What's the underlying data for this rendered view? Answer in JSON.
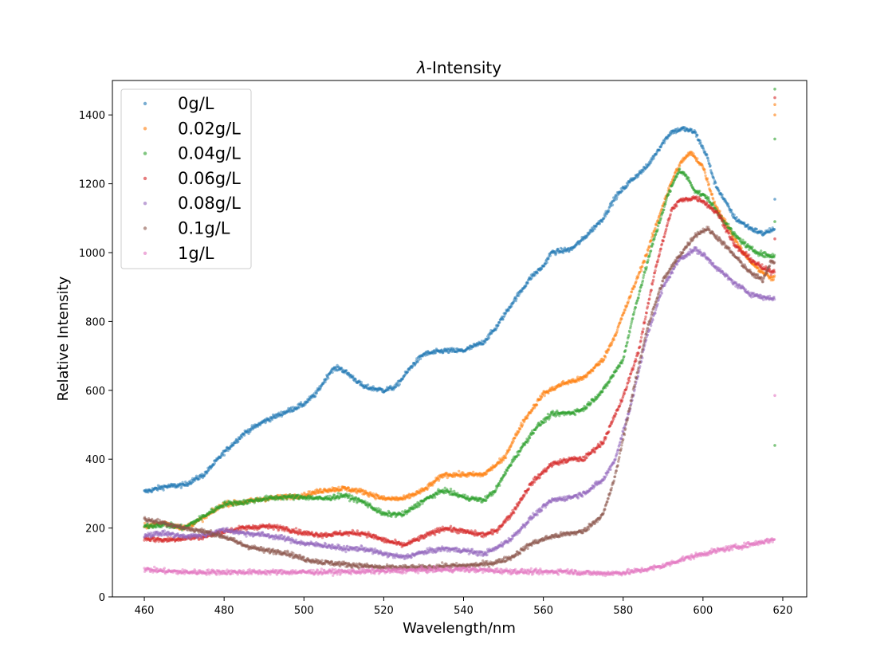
{
  "chart_data": {
    "type": "scatter",
    "title_prefix": "λ",
    "title_suffix": "-Intensity",
    "xlabel": "Wavelength/nm",
    "ylabel": "Relative Intensity",
    "xlim": [
      452,
      626
    ],
    "ylim": [
      0,
      1500
    ],
    "xticks": [
      460,
      480,
      500,
      520,
      540,
      560,
      580,
      600,
      620
    ],
    "yticks": [
      0,
      200,
      400,
      600,
      800,
      1000,
      1200,
      1400
    ],
    "grid": false,
    "legend_position": "top-left",
    "x_start": 460,
    "x_end": 618,
    "series": [
      {
        "name": "0g/L",
        "color": "#1f77b4",
        "anchors": [
          [
            460,
            305
          ],
          [
            465,
            320
          ],
          [
            470,
            325
          ],
          [
            475,
            355
          ],
          [
            480,
            420
          ],
          [
            485,
            475
          ],
          [
            490,
            510
          ],
          [
            495,
            535
          ],
          [
            500,
            560
          ],
          [
            503,
            590
          ],
          [
            507,
            660
          ],
          [
            509,
            665
          ],
          [
            512,
            640
          ],
          [
            515,
            610
          ],
          [
            520,
            600
          ],
          [
            523,
            610
          ],
          [
            527,
            670
          ],
          [
            530,
            705
          ],
          [
            535,
            715
          ],
          [
            540,
            715
          ],
          [
            545,
            740
          ],
          [
            548,
            780
          ],
          [
            552,
            850
          ],
          [
            557,
            930
          ],
          [
            560,
            960
          ],
          [
            562,
            1000
          ],
          [
            567,
            1010
          ],
          [
            570,
            1040
          ],
          [
            575,
            1100
          ],
          [
            578,
            1160
          ],
          [
            582,
            1210
          ],
          [
            586,
            1250
          ],
          [
            590,
            1320
          ],
          [
            592,
            1350
          ],
          [
            595,
            1360
          ],
          [
            598,
            1350
          ],
          [
            601,
            1280
          ],
          [
            603,
            1200
          ],
          [
            605,
            1160
          ],
          [
            608,
            1100
          ],
          [
            612,
            1070
          ],
          [
            615,
            1055
          ],
          [
            617,
            1065
          ]
        ],
        "outliers": [
          [
            618,
            1155
          ]
        ]
      },
      {
        "name": "0.02g/L",
        "color": "#ff7f0e",
        "anchors": [
          [
            460,
            205
          ],
          [
            465,
            215
          ],
          [
            470,
            200
          ],
          [
            475,
            230
          ],
          [
            480,
            270
          ],
          [
            485,
            275
          ],
          [
            490,
            285
          ],
          [
            495,
            290
          ],
          [
            500,
            295
          ],
          [
            505,
            310
          ],
          [
            510,
            315
          ],
          [
            515,
            305
          ],
          [
            520,
            285
          ],
          [
            525,
            285
          ],
          [
            530,
            310
          ],
          [
            535,
            355
          ],
          [
            540,
            355
          ],
          [
            545,
            355
          ],
          [
            550,
            400
          ],
          [
            555,
            510
          ],
          [
            560,
            590
          ],
          [
            565,
            620
          ],
          [
            570,
            635
          ],
          [
            575,
            690
          ],
          [
            578,
            760
          ],
          [
            582,
            880
          ],
          [
            586,
            1000
          ],
          [
            590,
            1140
          ],
          [
            593,
            1230
          ],
          [
            595,
            1270
          ],
          [
            597,
            1290
          ],
          [
            600,
            1250
          ],
          [
            603,
            1140
          ],
          [
            606,
            1080
          ],
          [
            610,
            1000
          ],
          [
            613,
            960
          ],
          [
            616,
            935
          ],
          [
            617,
            925
          ]
        ],
        "outliers": [
          [
            618,
            1400
          ],
          [
            618,
            1430
          ]
        ]
      },
      {
        "name": "0.04g/L",
        "color": "#2ca02c",
        "anchors": [
          [
            460,
            205
          ],
          [
            465,
            210
          ],
          [
            470,
            200
          ],
          [
            475,
            235
          ],
          [
            480,
            270
          ],
          [
            485,
            275
          ],
          [
            490,
            285
          ],
          [
            495,
            290
          ],
          [
            500,
            290
          ],
          [
            505,
            285
          ],
          [
            510,
            295
          ],
          [
            515,
            275
          ],
          [
            520,
            240
          ],
          [
            525,
            240
          ],
          [
            530,
            280
          ],
          [
            535,
            310
          ],
          [
            540,
            290
          ],
          [
            545,
            280
          ],
          [
            548,
            310
          ],
          [
            552,
            390
          ],
          [
            558,
            490
          ],
          [
            562,
            530
          ],
          [
            567,
            535
          ],
          [
            570,
            545
          ],
          [
            575,
            600
          ],
          [
            580,
            690
          ],
          [
            583,
            840
          ],
          [
            587,
            1010
          ],
          [
            591,
            1160
          ],
          [
            594,
            1240
          ],
          [
            596,
            1220
          ],
          [
            598,
            1180
          ],
          [
            601,
            1160
          ],
          [
            604,
            1110
          ],
          [
            608,
            1050
          ],
          [
            612,
            1010
          ],
          [
            615,
            995
          ],
          [
            617,
            990
          ]
        ],
        "outliers": [
          [
            618,
            1475
          ],
          [
            618,
            1330
          ],
          [
            618,
            1090
          ],
          [
            618,
            440
          ]
        ]
      },
      {
        "name": "0.06g/L",
        "color": "#d62728",
        "anchors": [
          [
            460,
            170
          ],
          [
            465,
            165
          ],
          [
            470,
            170
          ],
          [
            475,
            175
          ],
          [
            480,
            190
          ],
          [
            485,
            200
          ],
          [
            490,
            205
          ],
          [
            495,
            200
          ],
          [
            500,
            185
          ],
          [
            505,
            180
          ],
          [
            510,
            185
          ],
          [
            515,
            185
          ],
          [
            520,
            165
          ],
          [
            525,
            150
          ],
          [
            530,
            175
          ],
          [
            535,
            200
          ],
          [
            540,
            190
          ],
          [
            545,
            180
          ],
          [
            548,
            190
          ],
          [
            552,
            240
          ],
          [
            557,
            330
          ],
          [
            562,
            385
          ],
          [
            567,
            400
          ],
          [
            570,
            400
          ],
          [
            575,
            450
          ],
          [
            580,
            580
          ],
          [
            584,
            720
          ],
          [
            588,
            950
          ],
          [
            592,
            1120
          ],
          [
            594,
            1150
          ],
          [
            598,
            1160
          ],
          [
            600,
            1150
          ],
          [
            604,
            1110
          ],
          [
            608,
            1020
          ],
          [
            612,
            980
          ],
          [
            615,
            955
          ],
          [
            617,
            945
          ]
        ],
        "outliers": [
          [
            618,
            1450
          ],
          [
            618,
            1040
          ]
        ]
      },
      {
        "name": "0.08g/L",
        "color": "#9467bd",
        "anchors": [
          [
            460,
            180
          ],
          [
            465,
            185
          ],
          [
            470,
            175
          ],
          [
            475,
            180
          ],
          [
            480,
            195
          ],
          [
            485,
            185
          ],
          [
            490,
            180
          ],
          [
            495,
            170
          ],
          [
            500,
            155
          ],
          [
            505,
            150
          ],
          [
            510,
            140
          ],
          [
            515,
            140
          ],
          [
            520,
            125
          ],
          [
            525,
            115
          ],
          [
            530,
            130
          ],
          [
            535,
            140
          ],
          [
            540,
            135
          ],
          [
            545,
            125
          ],
          [
            548,
            140
          ],
          [
            552,
            170
          ],
          [
            557,
            230
          ],
          [
            562,
            280
          ],
          [
            567,
            290
          ],
          [
            570,
            300
          ],
          [
            575,
            340
          ],
          [
            578,
            400
          ],
          [
            582,
            560
          ],
          [
            586,
            760
          ],
          [
            590,
            900
          ],
          [
            594,
            980
          ],
          [
            598,
            1010
          ],
          [
            600,
            995
          ],
          [
            604,
            950
          ],
          [
            608,
            910
          ],
          [
            612,
            880
          ],
          [
            615,
            870
          ],
          [
            617,
            868
          ]
        ],
        "outliers": []
      },
      {
        "name": "0.1g/L",
        "color": "#8c564b",
        "anchors": [
          [
            460,
            225
          ],
          [
            465,
            215
          ],
          [
            470,
            200
          ],
          [
            475,
            190
          ],
          [
            480,
            175
          ],
          [
            485,
            150
          ],
          [
            490,
            135
          ],
          [
            495,
            130
          ],
          [
            500,
            110
          ],
          [
            505,
            100
          ],
          [
            510,
            95
          ],
          [
            515,
            90
          ],
          [
            520,
            85
          ],
          [
            525,
            85
          ],
          [
            530,
            85
          ],
          [
            535,
            90
          ],
          [
            540,
            90
          ],
          [
            545,
            95
          ],
          [
            548,
            100
          ],
          [
            552,
            115
          ],
          [
            557,
            155
          ],
          [
            562,
            175
          ],
          [
            567,
            185
          ],
          [
            570,
            190
          ],
          [
            575,
            240
          ],
          [
            578,
            350
          ],
          [
            582,
            570
          ],
          [
            586,
            780
          ],
          [
            590,
            920
          ],
          [
            594,
            990
          ],
          [
            598,
            1050
          ],
          [
            601,
            1070
          ],
          [
            604,
            1040
          ],
          [
            608,
            990
          ],
          [
            612,
            940
          ],
          [
            615,
            920
          ],
          [
            617,
            975
          ]
        ],
        "outliers": []
      },
      {
        "name": "1g/L",
        "color": "#e377c2",
        "anchors": [
          [
            460,
            80
          ],
          [
            465,
            75
          ],
          [
            470,
            72
          ],
          [
            480,
            72
          ],
          [
            490,
            72
          ],
          [
            500,
            72
          ],
          [
            510,
            73
          ],
          [
            520,
            75
          ],
          [
            530,
            78
          ],
          [
            540,
            80
          ],
          [
            550,
            75
          ],
          [
            560,
            72
          ],
          [
            565,
            75
          ],
          [
            570,
            70
          ],
          [
            575,
            68
          ],
          [
            580,
            70
          ],
          [
            585,
            78
          ],
          [
            590,
            90
          ],
          [
            595,
            110
          ],
          [
            600,
            125
          ],
          [
            605,
            138
          ],
          [
            610,
            148
          ],
          [
            615,
            160
          ],
          [
            617,
            165
          ]
        ],
        "outliers": [
          [
            618,
            585
          ]
        ]
      }
    ]
  }
}
